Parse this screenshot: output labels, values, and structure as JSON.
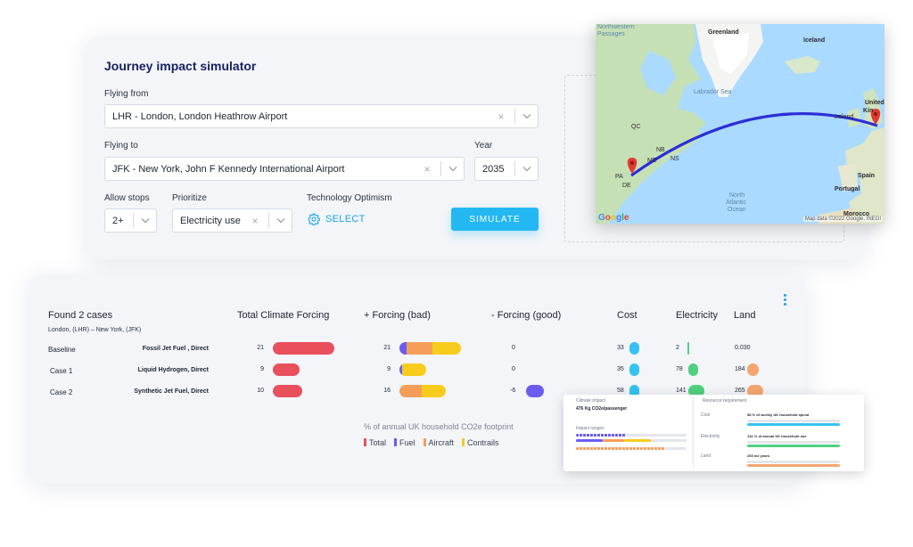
{
  "simulator": {
    "title": "Journey impact simulator",
    "flying_from_label": "Flying from",
    "flying_from_value": "LHR - London, London Heathrow Airport",
    "flying_to_label": "Flying to",
    "flying_to_value": "JFK - New York, John F Kennedy International Airport",
    "year_label": "Year",
    "year_value": "2035",
    "allow_stops_label": "Allow stops",
    "allow_stops_value": "2+",
    "prioritize_label": "Prioritize",
    "prioritize_value": "Electricity use",
    "tech_optimism_label": "Technology Optimism",
    "select_label": "SELECT",
    "simulate_label": "SIMULATE",
    "clear_icon": "×",
    "accent_color": "#23b8f2"
  },
  "map": {
    "labels": {
      "northwestern": "Northwestern",
      "passages": "Passages",
      "greenland": "Greenland",
      "iceland": "Iceland",
      "labrador_sea": "Labrador Sea",
      "united_kingdom_1": "United",
      "united_kingdom_2": "Kin",
      "ireland": "Ireland",
      "qc": "QC",
      "nb": "NB",
      "ns": "NS",
      "me": "ME",
      "pa": "PA",
      "de": "DE",
      "north_atlantic_ocean_1": "North",
      "north_atlantic_ocean_2": "Atlantic",
      "north_atlantic_ocean_3": "Ocean",
      "spain": "Spain",
      "portugal": "Portugal",
      "morocco": "Morocco"
    },
    "google_logo": "Google",
    "credit": "Map data ©2022 Google, INEGI",
    "route_color": "#2b2fd6",
    "pin_color": "#e23a31"
  },
  "results": {
    "found_label": "Found 2 cases",
    "route_label": "London, (LHR) – New York, (JFK)",
    "headers": {
      "total": "Total Climate Forcing",
      "plus": "+ Forcing (bad)",
      "minus": "- Forcing (good)",
      "cost": "Cost",
      "electricity": "Electricity",
      "land": "Land"
    },
    "rows": [
      {
        "name": "Baseline",
        "fuel": "Fossil Jet Fuel , Direct",
        "total": "21",
        "total_frac": 1.0,
        "plus": "21",
        "plus_frac": 1.0,
        "plus_parts": [
          0.12,
          0.42,
          0.46
        ],
        "minus": "0",
        "minus_frac": 0,
        "cost": "33",
        "electricity": "2",
        "land": "0.030"
      },
      {
        "name": "Case 1",
        "fuel": "Liquid Hydrogen, Direct",
        "total": "9",
        "total_frac": 0.43,
        "plus": "9",
        "plus_frac": 0.43,
        "plus_parts": [
          0.1,
          0,
          0.9
        ],
        "minus": "0",
        "minus_frac": 0,
        "cost": "35",
        "electricity": "78",
        "land": "184"
      },
      {
        "name": "Case 2",
        "fuel": "Synthetic Jet Fuel, Direct",
        "total": "10",
        "total_frac": 0.48,
        "plus": "16",
        "plus_frac": 0.76,
        "plus_parts": [
          0,
          0.48,
          0.52
        ],
        "minus": "-6",
        "minus_frac": 0.29,
        "cost": "58",
        "electricity": "141",
        "land": "265"
      }
    ],
    "legend_title": "% of annual UK household CO2e footprint",
    "legend": [
      {
        "label": "Total",
        "color": "#e8505b"
      },
      {
        "label": "Fuel",
        "color": "#6a5cf0"
      },
      {
        "label": "Aircraft",
        "color": "#f59e5a"
      },
      {
        "label": "Contrails",
        "color": "#f7cc1d"
      }
    ],
    "colors": {
      "total": "#e8505b",
      "fuel": "#6a5cf0",
      "aircraft": "#f59e5a",
      "contrails": "#f7cc1d",
      "cost": "#35c2f2",
      "electricity": "#4fd07f",
      "land": "#f5a670"
    }
  },
  "popup": {
    "climate_impact_label": "Climate impact",
    "climate_impact_value": "476 Kg CO2e/passenger",
    "impact_ranges_label": "Impact ranges",
    "resource_label": "Resource requirement",
    "resources": [
      {
        "name": "Cost",
        "value": "58 % of weekly UK household spend"
      },
      {
        "name": "Electricity",
        "value": "141 % of annual UK household use"
      },
      {
        "name": "Land",
        "value": "265 m2 years"
      }
    ]
  }
}
